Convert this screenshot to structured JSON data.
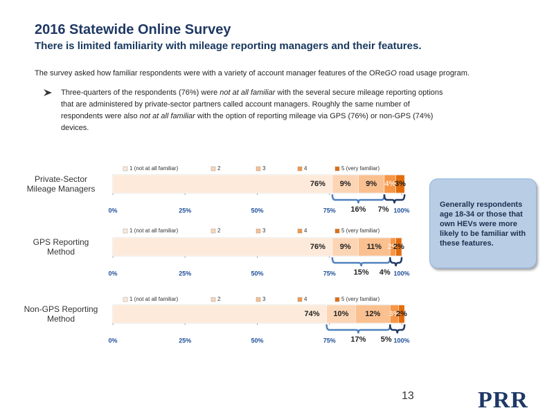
{
  "header": {
    "title": "2016 Statewide Online Survey",
    "subtitle": "There is limited familiarity with mileage reporting managers and their features."
  },
  "intro": [
    "The survey asked how familiar respondents were with a variety of account manager features of the ORe",
    "GO",
    " road usage program."
  ],
  "bullet": [
    "Three-quarters of the respondents (76%) were ",
    "not at all familiar",
    " with the several secure mileage reporting options that are administered by private-sector partners called account managers. Roughly the same number of respondents were also ",
    "not at all familiar",
    " with the option of reporting mileage via GPS (76%) or non-GPS (74%) devices."
  ],
  "callout": "Generally respondents age 18-34 or those that own HEVs were more likely to be familiar with these features.",
  "page_number": "13",
  "logo": "PRR",
  "chart_data": [
    {
      "type": "stacked-bar",
      "title": "Private-Sector Mileage Managers",
      "xlim": [
        0,
        100
      ],
      "xticks": [
        {
          "value": 0,
          "label": "0%"
        },
        {
          "value": 25,
          "label": "25%"
        },
        {
          "value": 50,
          "label": "50%"
        },
        {
          "value": 75,
          "label": "75%"
        },
        {
          "value": 100,
          "label": "100%"
        }
      ],
      "series": [
        {
          "name": "1 (not at all familiar)",
          "color": "#fdeada",
          "values": [
            76
          ],
          "value_labels": [
            "76%"
          ]
        },
        {
          "name": "2",
          "color": "#fcd5b5",
          "values": [
            9
          ],
          "value_labels": [
            "9%"
          ]
        },
        {
          "name": "3",
          "color": "#fac090",
          "values": [
            9
          ],
          "value_labels": [
            "9%"
          ]
        },
        {
          "name": "4",
          "color": "#f79646",
          "values": [
            4
          ],
          "value_labels": [
            "4%"
          ]
        },
        {
          "name": "5 (very familiar)",
          "color": "#e46c0a",
          "values": [
            3
          ],
          "value_labels": [
            "3%"
          ]
        }
      ],
      "annotations": [
        "16%",
        "7%"
      ]
    },
    {
      "type": "stacked-bar",
      "title": "GPS Reporting Method",
      "xlim": [
        0,
        100
      ],
      "xticks": [
        {
          "value": 0,
          "label": "0%"
        },
        {
          "value": 25,
          "label": "25%"
        },
        {
          "value": 50,
          "label": "50%"
        },
        {
          "value": 75,
          "label": "75%"
        },
        {
          "value": 100,
          "label": "100%"
        }
      ],
      "series": [
        {
          "name": "1 (not at all familiar)",
          "color": "#fdeada",
          "values": [
            76
          ],
          "value_labels": [
            "76%"
          ]
        },
        {
          "name": "2",
          "color": "#fcd5b5",
          "values": [
            9
          ],
          "value_labels": [
            "9%"
          ]
        },
        {
          "name": "3",
          "color": "#fac090",
          "values": [
            11
          ],
          "value_labels": [
            "11%"
          ]
        },
        {
          "name": "4",
          "color": "#f79646",
          "values": [
            2
          ],
          "value_labels": [
            "2%"
          ]
        },
        {
          "name": "5 (very familiar)",
          "color": "#e46c0a",
          "values": [
            2
          ],
          "value_labels": [
            "2%"
          ]
        }
      ],
      "annotations": [
        "15%",
        "4%"
      ]
    },
    {
      "type": "stacked-bar",
      "title": "Non-GPS Reporting Method",
      "xlim": [
        0,
        100
      ],
      "xticks": [
        {
          "value": 0,
          "label": "0%"
        },
        {
          "value": 25,
          "label": "25%"
        },
        {
          "value": 50,
          "label": "50%"
        },
        {
          "value": 75,
          "label": "75%"
        },
        {
          "value": 100,
          "label": "100%"
        }
      ],
      "series": [
        {
          "name": "1 (not at all familiar)",
          "color": "#fdeada",
          "values": [
            74
          ],
          "value_labels": [
            "74%"
          ]
        },
        {
          "name": "2",
          "color": "#fcd5b5",
          "values": [
            10
          ],
          "value_labels": [
            "10%"
          ]
        },
        {
          "name": "3",
          "color": "#fac090",
          "values": [
            12
          ],
          "value_labels": [
            "12%"
          ]
        },
        {
          "name": "4",
          "color": "#f79646",
          "values": [
            3
          ],
          "value_labels": [
            "3%"
          ]
        },
        {
          "name": "5 (very familiar)",
          "color": "#e46c0a",
          "values": [
            2
          ],
          "value_labels": [
            "2%"
          ]
        }
      ],
      "annotations": [
        "17%",
        "5%"
      ]
    }
  ]
}
